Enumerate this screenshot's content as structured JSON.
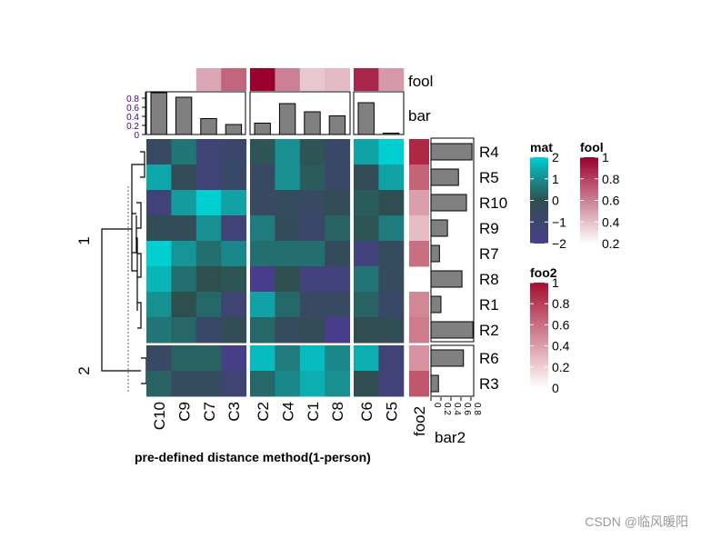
{
  "chart_data": {
    "type": "heatmap",
    "rows": [
      "R4",
      "R5",
      "R10",
      "R9",
      "R7",
      "R8",
      "R1",
      "R2",
      "R6",
      "R3"
    ],
    "row_groups": [
      {
        "label": "1",
        "rows": 8
      },
      {
        "label": "2",
        "rows": 2
      }
    ],
    "columns": [
      "C10",
      "C9",
      "C7",
      "C3",
      "C2",
      "C4",
      "C1",
      "C8",
      "C6",
      "C5"
    ],
    "column_groups": [
      4,
      4,
      2
    ],
    "values": [
      [
        -0.7,
        0.6,
        -1.2,
        -0.9,
        0.1,
        1.0,
        0.1,
        -0.8,
        1.3,
        2.0
      ],
      [
        1.4,
        -0.3,
        -1.3,
        -0.8,
        -0.7,
        1.0,
        0.2,
        -0.8,
        -0.3,
        1.3
      ],
      [
        -1.4,
        1.2,
        2.0,
        1.3,
        -0.6,
        -0.5,
        -0.6,
        -0.2,
        0.2,
        -0.1
      ],
      [
        -0.2,
        -0.3,
        1.0,
        -1.3,
        0.7,
        -0.4,
        -0.9,
        0.3,
        0.1,
        0.7
      ],
      [
        2.0,
        1.1,
        0.5,
        0.9,
        0.5,
        0.5,
        0.5,
        -0.4,
        -1.5,
        -0.5
      ],
      [
        1.6,
        0.5,
        0.0,
        0.1,
        -2.0,
        0.0,
        -1.5,
        -1.5,
        0.6,
        -0.5
      ],
      [
        1.0,
        0.0,
        0.4,
        -1.1,
        1.3,
        0.4,
        -0.7,
        -0.6,
        0.3,
        -0.8
      ],
      [
        0.6,
        0.4,
        -0.8,
        -0.2,
        0.4,
        -0.5,
        -0.3,
        -2.0,
        -0.1,
        -0.2
      ],
      [
        -0.7,
        0.3,
        0.3,
        -1.8,
        1.7,
        0.7,
        1.7,
        0.9,
        1.5,
        -1.3
      ],
      [
        0.3,
        -0.5,
        -0.5,
        -1.1,
        0.4,
        0.9,
        1.5,
        1.0,
        -0.1,
        -1.4
      ]
    ],
    "mat_scale": {
      "title": "mat",
      "colors": [
        "#483D8B",
        "#2F4F4F",
        "#00CED1"
      ],
      "breaks": [
        -2,
        0,
        2
      ],
      "ticks": [
        "2",
        "1",
        "0",
        "−1",
        "−2"
      ]
    },
    "top_annotations": {
      "fool": {
        "label": "fool",
        "values": [
          null,
          null,
          0.35,
          0.6,
          1.0,
          0.5,
          0.22,
          0.27,
          0.85,
          0.4
        ]
      },
      "bar": {
        "label": "bar",
        "values": [
          0.92,
          0.82,
          0.35,
          0.22,
          0.25,
          0.68,
          0.5,
          0.41,
          0.7,
          0.03
        ],
        "ticks": [
          "0",
          "0.2",
          "0.4",
          "0.6",
          "0.8"
        ]
      }
    },
    "right_annotations": {
      "foo2": {
        "label": "foo2",
        "values": [
          0.9,
          0.65,
          0.4,
          0.28,
          0.6,
          null,
          0.5,
          0.55,
          0.45,
          0.7
        ]
      },
      "bar2": {
        "label": "bar2",
        "values": [
          0.82,
          0.55,
          0.71,
          0.33,
          0.17,
          0.62,
          0.2,
          0.84,
          0.65,
          0.15
        ],
        "ticks": [
          "0",
          "0.2",
          "0.4",
          "0.6",
          "0.8"
        ]
      }
    },
    "legends": {
      "fool": {
        "title": "fool",
        "ticks": [
          "1",
          "0.8",
          "0.6",
          "0.4",
          "0.2"
        ],
        "colors": [
          "#FFFFFF",
          "#99002B"
        ]
      },
      "foo2": {
        "title": "foo2",
        "ticks": [
          "1",
          "0.8",
          "0.6",
          "0.4",
          "0.2",
          "0"
        ],
        "colors": [
          "#FFFFFF",
          "#A50F2E"
        ]
      }
    },
    "xlabel": "pre-defined distance method(1-person)"
  },
  "watermark": "CSDN @临风暖阳"
}
